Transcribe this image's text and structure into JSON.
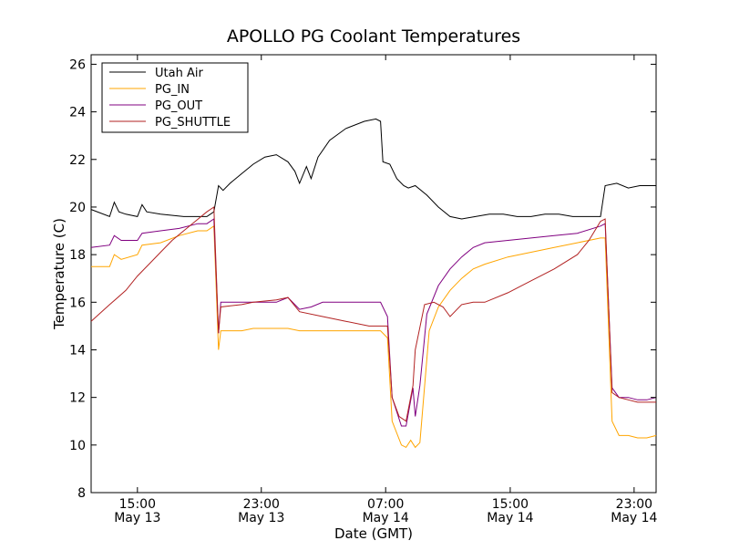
{
  "chart_data": {
    "type": "line",
    "title": "APOLLO PG Coolant Temperatures",
    "xlabel": "Date (GMT)",
    "ylabel": "Temperature (C)",
    "xlim": [
      12,
      36.4
    ],
    "ylim": [
      8,
      26.4
    ],
    "grid": false,
    "legend_position": "top-left",
    "y_ticks": [
      {
        "value": 8,
        "label": "8"
      },
      {
        "value": 10,
        "label": "10"
      },
      {
        "value": 12,
        "label": "12"
      },
      {
        "value": 14,
        "label": "14"
      },
      {
        "value": 16,
        "label": "16"
      },
      {
        "value": 18,
        "label": "18"
      },
      {
        "value": 20,
        "label": "20"
      },
      {
        "value": 22,
        "label": "22"
      },
      {
        "value": 24,
        "label": "24"
      },
      {
        "value": 26,
        "label": "26"
      }
    ],
    "x_ticks": [
      {
        "value": 14,
        "line1": "15:00",
        "line2": "May 13"
      },
      {
        "value": 19.35,
        "line1": "23:00",
        "line2": "May 13"
      },
      {
        "value": 24.72,
        "line1": "07:00",
        "line2": "May 14"
      },
      {
        "value": 30.1,
        "line1": "15:00",
        "line2": "May 14"
      },
      {
        "value": 35.45,
        "line1": "23:00",
        "line2": "May 14"
      }
    ],
    "series": [
      {
        "name": "Utah Air",
        "color": "#000000",
        "points": [
          [
            12,
            19.9
          ],
          [
            12.8,
            19.6
          ],
          [
            13.0,
            20.2
          ],
          [
            13.2,
            19.8
          ],
          [
            13.5,
            19.7
          ],
          [
            14.0,
            19.6
          ],
          [
            14.2,
            20.1
          ],
          [
            14.4,
            19.8
          ],
          [
            15.0,
            19.7
          ],
          [
            16.0,
            19.6
          ],
          [
            17.0,
            19.6
          ],
          [
            17.3,
            19.8
          ],
          [
            17.5,
            20.9
          ],
          [
            17.7,
            20.7
          ],
          [
            18.0,
            21.0
          ],
          [
            18.5,
            21.4
          ],
          [
            19.0,
            21.8
          ],
          [
            19.5,
            22.1
          ],
          [
            20.0,
            22.2
          ],
          [
            20.5,
            21.9
          ],
          [
            20.8,
            21.5
          ],
          [
            21.0,
            21.0
          ],
          [
            21.3,
            21.7
          ],
          [
            21.5,
            21.2
          ],
          [
            21.8,
            22.1
          ],
          [
            22.3,
            22.8
          ],
          [
            23.0,
            23.3
          ],
          [
            23.8,
            23.6
          ],
          [
            24.3,
            23.7
          ],
          [
            24.5,
            23.6
          ],
          [
            24.6,
            21.9
          ],
          [
            24.9,
            21.8
          ],
          [
            25.2,
            21.2
          ],
          [
            25.5,
            20.9
          ],
          [
            25.7,
            20.8
          ],
          [
            26.0,
            20.9
          ],
          [
            26.5,
            20.5
          ],
          [
            27.0,
            20.0
          ],
          [
            27.5,
            19.6
          ],
          [
            28.0,
            19.5
          ],
          [
            28.6,
            19.6
          ],
          [
            29.2,
            19.7
          ],
          [
            29.8,
            19.7
          ],
          [
            30.4,
            19.6
          ],
          [
            31.0,
            19.6
          ],
          [
            31.6,
            19.7
          ],
          [
            32.2,
            19.7
          ],
          [
            32.8,
            19.6
          ],
          [
            33.5,
            19.6
          ],
          [
            34.0,
            19.6
          ],
          [
            34.2,
            20.9
          ],
          [
            34.7,
            21.0
          ],
          [
            35.2,
            20.8
          ],
          [
            35.7,
            20.9
          ],
          [
            36.4,
            20.9
          ]
        ]
      },
      {
        "name": "PG_IN",
        "color": "#ffa500",
        "points": [
          [
            12,
            17.5
          ],
          [
            12.8,
            17.5
          ],
          [
            13.0,
            18.0
          ],
          [
            13.3,
            17.8
          ],
          [
            14.0,
            18.0
          ],
          [
            14.2,
            18.4
          ],
          [
            15.0,
            18.5
          ],
          [
            15.8,
            18.8
          ],
          [
            16.6,
            19.0
          ],
          [
            17.0,
            19.0
          ],
          [
            17.3,
            19.2
          ],
          [
            17.5,
            14.0
          ],
          [
            17.6,
            14.8
          ],
          [
            18.5,
            14.8
          ],
          [
            19.0,
            14.9
          ],
          [
            20.0,
            14.9
          ],
          [
            20.5,
            14.9
          ],
          [
            21.0,
            14.8
          ],
          [
            22.0,
            14.8
          ],
          [
            23.0,
            14.8
          ],
          [
            24.0,
            14.8
          ],
          [
            24.5,
            14.8
          ],
          [
            24.8,
            14.5
          ],
          [
            25.0,
            11.0
          ],
          [
            25.4,
            10.0
          ],
          [
            25.6,
            9.9
          ],
          [
            25.8,
            10.2
          ],
          [
            26.0,
            9.9
          ],
          [
            26.2,
            10.1
          ],
          [
            26.6,
            14.8
          ],
          [
            27.0,
            15.8
          ],
          [
            27.5,
            16.5
          ],
          [
            28.0,
            17.0
          ],
          [
            28.5,
            17.4
          ],
          [
            29.0,
            17.6
          ],
          [
            30.0,
            17.9
          ],
          [
            31.0,
            18.1
          ],
          [
            32.0,
            18.3
          ],
          [
            33.0,
            18.5
          ],
          [
            34.0,
            18.7
          ],
          [
            34.2,
            18.7
          ],
          [
            34.5,
            11.0
          ],
          [
            34.8,
            10.4
          ],
          [
            35.2,
            10.4
          ],
          [
            35.6,
            10.3
          ],
          [
            36.0,
            10.3
          ],
          [
            36.4,
            10.4
          ]
        ]
      },
      {
        "name": "PG_OUT",
        "color": "#800080",
        "points": [
          [
            12,
            18.3
          ],
          [
            12.8,
            18.4
          ],
          [
            13.0,
            18.8
          ],
          [
            13.3,
            18.6
          ],
          [
            14.0,
            18.6
          ],
          [
            14.2,
            18.9
          ],
          [
            15.0,
            19.0
          ],
          [
            15.8,
            19.1
          ],
          [
            16.6,
            19.3
          ],
          [
            17.0,
            19.3
          ],
          [
            17.3,
            19.5
          ],
          [
            17.5,
            14.7
          ],
          [
            17.6,
            16.0
          ],
          [
            18.5,
            16.0
          ],
          [
            19.0,
            16.0
          ],
          [
            20.0,
            16.0
          ],
          [
            20.5,
            16.2
          ],
          [
            21.0,
            15.7
          ],
          [
            21.5,
            15.8
          ],
          [
            22.0,
            16.0
          ],
          [
            23.0,
            16.0
          ],
          [
            24.0,
            16.0
          ],
          [
            24.5,
            16.0
          ],
          [
            24.8,
            15.4
          ],
          [
            25.0,
            12.0
          ],
          [
            25.4,
            10.8
          ],
          [
            25.6,
            10.8
          ],
          [
            25.9,
            12.4
          ],
          [
            26.0,
            11.2
          ],
          [
            26.2,
            12.5
          ],
          [
            26.5,
            15.5
          ],
          [
            27.0,
            16.7
          ],
          [
            27.5,
            17.4
          ],
          [
            28.0,
            17.9
          ],
          [
            28.5,
            18.3
          ],
          [
            29.0,
            18.5
          ],
          [
            30.0,
            18.6
          ],
          [
            31.0,
            18.7
          ],
          [
            32.0,
            18.8
          ],
          [
            33.0,
            18.9
          ],
          [
            34.0,
            19.2
          ],
          [
            34.2,
            19.3
          ],
          [
            34.5,
            12.4
          ],
          [
            34.8,
            12.0
          ],
          [
            35.2,
            12.0
          ],
          [
            35.6,
            11.9
          ],
          [
            36.0,
            11.9
          ],
          [
            36.4,
            12.0
          ]
        ]
      },
      {
        "name": "PG_SHUTTLE",
        "color": "#b22222",
        "points": [
          [
            12,
            15.2
          ],
          [
            12.8,
            15.9
          ],
          [
            13.5,
            16.5
          ],
          [
            14.0,
            17.1
          ],
          [
            14.5,
            17.6
          ],
          [
            15.0,
            18.1
          ],
          [
            15.5,
            18.6
          ],
          [
            16.0,
            19.0
          ],
          [
            16.5,
            19.4
          ],
          [
            17.0,
            19.8
          ],
          [
            17.3,
            20.0
          ],
          [
            17.5,
            14.7
          ],
          [
            17.6,
            15.8
          ],
          [
            18.5,
            15.9
          ],
          [
            19.0,
            16.0
          ],
          [
            20.0,
            16.1
          ],
          [
            20.5,
            16.2
          ],
          [
            21.0,
            15.6
          ],
          [
            22.0,
            15.4
          ],
          [
            23.0,
            15.2
          ],
          [
            24.0,
            15.0
          ],
          [
            24.5,
            15.0
          ],
          [
            24.8,
            15.0
          ],
          [
            25.0,
            12.0
          ],
          [
            25.3,
            11.2
          ],
          [
            25.6,
            11.0
          ],
          [
            25.9,
            12.5
          ],
          [
            26.0,
            14.0
          ],
          [
            26.4,
            15.9
          ],
          [
            26.8,
            16.0
          ],
          [
            27.2,
            15.8
          ],
          [
            27.5,
            15.4
          ],
          [
            28.0,
            15.9
          ],
          [
            28.5,
            16.0
          ],
          [
            29.0,
            16.0
          ],
          [
            30.0,
            16.4
          ],
          [
            31.0,
            16.9
          ],
          [
            32.0,
            17.4
          ],
          [
            33.0,
            18.0
          ],
          [
            33.5,
            18.6
          ],
          [
            34.0,
            19.4
          ],
          [
            34.2,
            19.5
          ],
          [
            34.5,
            12.2
          ],
          [
            34.8,
            12.0
          ],
          [
            35.2,
            11.9
          ],
          [
            35.6,
            11.8
          ],
          [
            36.0,
            11.8
          ],
          [
            36.4,
            11.8
          ]
        ]
      }
    ]
  }
}
